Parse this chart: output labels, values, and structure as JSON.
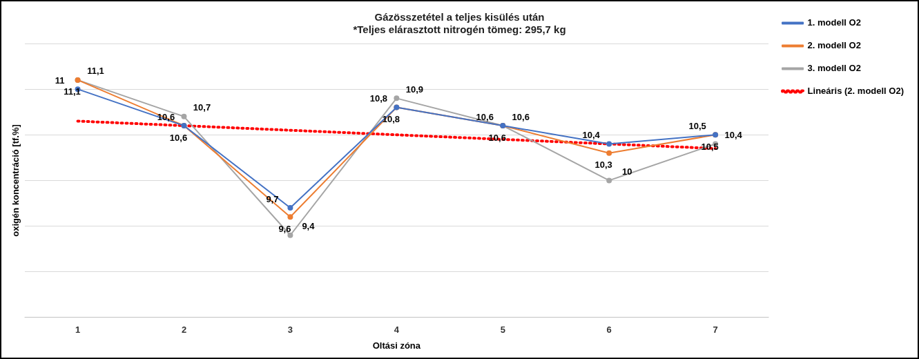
{
  "chart_data": {
    "type": "line",
    "title": [
      "Gázösszetétel a teljes kisülés után",
      "*Teljes elárasztott nitrogén tömeg: 295,7 kg"
    ],
    "xlabel": "Oltási zóna",
    "ylabel": "oxigén koncentráció [tf.%]",
    "categories": [
      "1",
      "2",
      "3",
      "4",
      "5",
      "6",
      "7"
    ],
    "series": [
      {
        "name": "1. modell O2",
        "color": "#4472c4",
        "values": [
          11,
          10.6,
          9.7,
          10.8,
          10.6,
          10.4,
          10.5
        ],
        "value_labels": [
          "11",
          "10,6",
          "9,7",
          "10,8",
          "10,6",
          "10,4",
          "10,5"
        ]
      },
      {
        "name": "2. modell O2",
        "color": "#ed7d31",
        "values": [
          11.1,
          10.6,
          9.6,
          10.8,
          10.6,
          10.3,
          10.5
        ],
        "value_labels": [
          "11,1",
          "10,6",
          "9,6",
          "10,8",
          "10,6",
          "10,3",
          "10,5"
        ]
      },
      {
        "name": "3. modell O2",
        "color": "#a5a5a5",
        "values": [
          11.1,
          10.7,
          9.4,
          10.9,
          10.6,
          10,
          10.4
        ],
        "value_labels": [
          "11,1",
          "10,7",
          "9,4",
          "10,9",
          "10,6",
          "10",
          "10,4"
        ]
      },
      {
        "name": "Lineáris (2. modell O2)",
        "color": "#ff0000",
        "type": "line",
        "x": [
          "1",
          "7"
        ],
        "values": [
          10.65,
          10.35
        ],
        "line_style": "dotted",
        "marker": "none"
      }
    ],
    "ylim": [
      8.5,
      11.5
    ],
    "yticks": [
      8.5,
      9,
      9.5,
      10,
      10.5,
      11,
      11.5
    ],
    "tick_labels": "x",
    "grid": "y",
    "legend": "top right",
    "marker": "circle",
    "line_style": "solid"
  }
}
